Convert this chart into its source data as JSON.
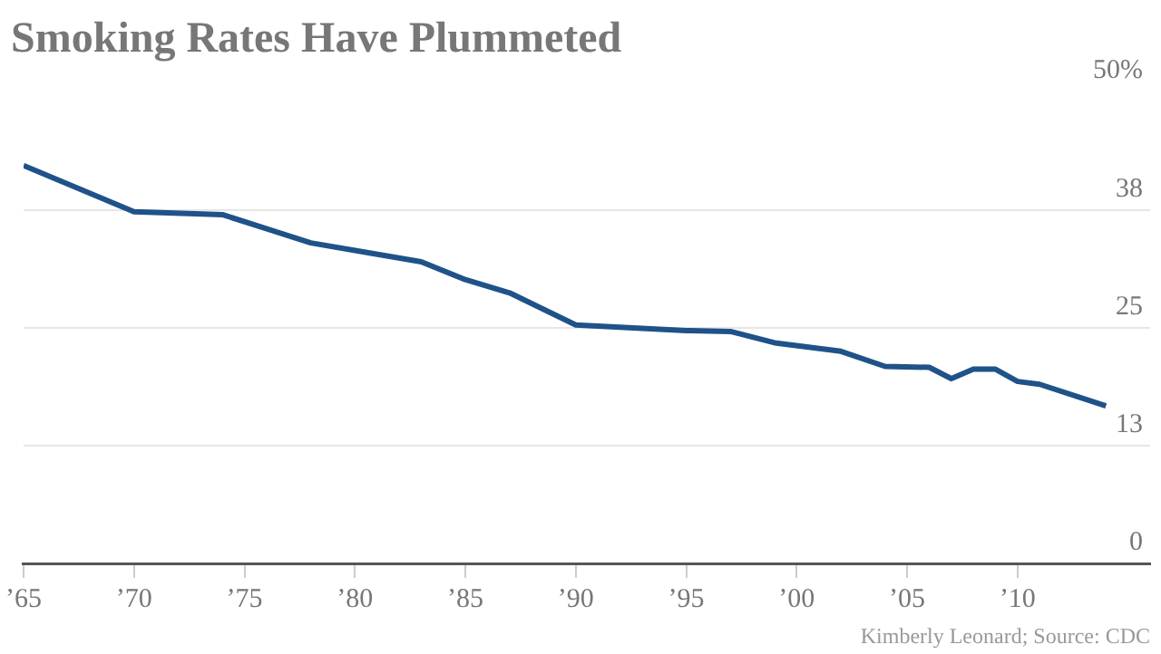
{
  "chart_data": {
    "type": "line",
    "title": "Smoking Rates Have Plummeted",
    "x": [
      1965,
      1970,
      1974,
      1978,
      1980,
      1983,
      1985,
      1987,
      1990,
      1995,
      1997,
      1999,
      2002,
      2004,
      2006,
      2007,
      2008,
      2009,
      2010,
      2011,
      2014
    ],
    "series": [
      {
        "color": "#1f5289",
        "values": [
          42.2,
          37.3,
          37.0,
          34.0,
          33.2,
          32.0,
          30.1,
          28.7,
          25.3,
          24.7,
          24.6,
          23.4,
          22.5,
          20.9,
          20.8,
          19.6,
          20.6,
          20.6,
          19.3,
          19.0,
          16.7
        ]
      }
    ],
    "xlim": [
      1965,
      2016
    ],
    "xticks": [
      {
        "value": 1965,
        "label": "’65"
      },
      {
        "value": 1970,
        "label": "’70"
      },
      {
        "value": 1975,
        "label": "’75"
      },
      {
        "value": 1980,
        "label": "’80"
      },
      {
        "value": 1985,
        "label": "’85"
      },
      {
        "value": 1990,
        "label": "’90"
      },
      {
        "value": 1995,
        "label": "’95"
      },
      {
        "value": 2000,
        "label": "’00"
      },
      {
        "value": 2005,
        "label": "’05"
      },
      {
        "value": 2010,
        "label": "’10"
      }
    ],
    "ylim": [
      0,
      50
    ],
    "yticks": [
      0,
      {
        "value": 12.5,
        "label": "13"
      },
      25,
      {
        "value": 37.5,
        "label": "38"
      },
      {
        "value": 50,
        "label": "50%"
      }
    ],
    "grid": "y",
    "legend": false,
    "marker": "none",
    "line_style": "solid",
    "annotations": [
      "Kimberly Leonard; Source: CDC"
    ]
  }
}
